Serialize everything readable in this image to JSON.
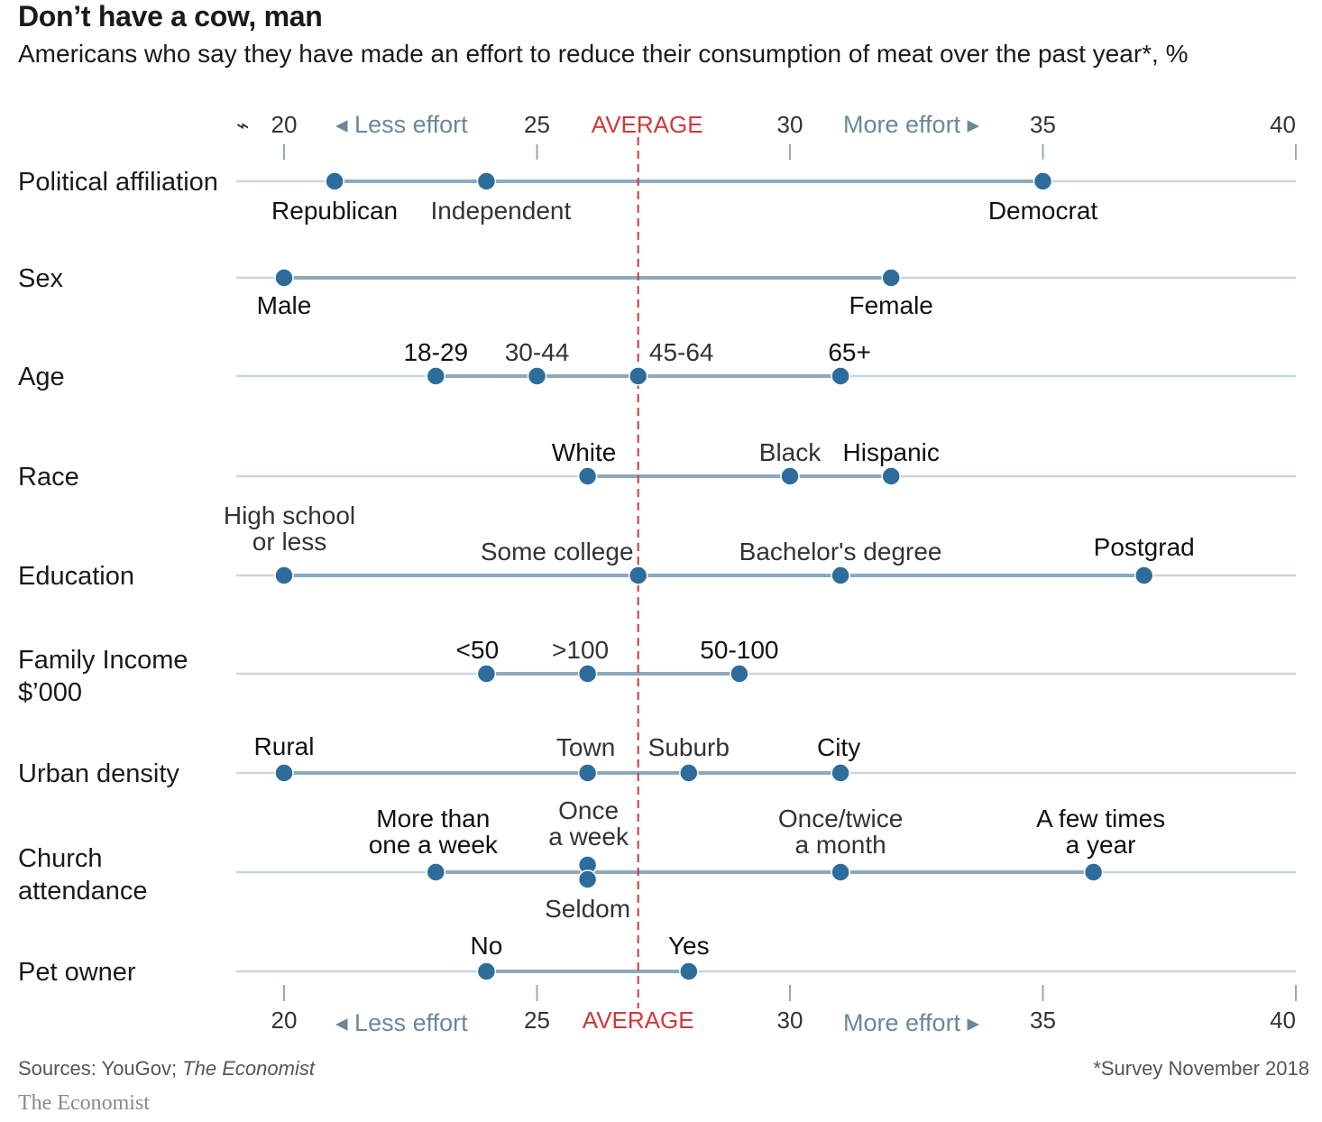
{
  "title": "Don’t have a cow, man",
  "subtitle": "Americans who say they have made an effort to reduce their consumption of meat over the past year*, %",
  "source_prefix": "Sources: YouGov; ",
  "source_italic": "The Economist",
  "footnote": "*Survey November 2018",
  "brand": "The Economist",
  "colors": {
    "dot": "#2e6c9c",
    "line": "#8ea8bc",
    "gridline": "#c9d6df",
    "average": "#d0383c",
    "axis_text": "#6b8799"
  },
  "axis_markers": {
    "less": "Less effort",
    "more": "More effort",
    "average": "AVERAGE",
    "break_symbol": "⌁"
  },
  "chart_data": {
    "type": "dot-range",
    "xlim": [
      20,
      40
    ],
    "ticks": [
      20,
      25,
      30,
      35,
      40
    ],
    "average": 27,
    "rows": [
      {
        "label": "Political affiliation",
        "points": [
          {
            "name": "Republican",
            "value": 21
          },
          {
            "name": "Independent",
            "value": 24
          },
          {
            "name": "Democrat",
            "value": 35
          }
        ]
      },
      {
        "label": "Sex",
        "points": [
          {
            "name": "Male",
            "value": 20
          },
          {
            "name": "Female",
            "value": 32
          }
        ]
      },
      {
        "label": "Age",
        "points": [
          {
            "name": "18-29",
            "value": 23
          },
          {
            "name": "30-44",
            "value": 25
          },
          {
            "name": "45-64",
            "value": 27
          },
          {
            "name": "65+",
            "value": 31
          }
        ]
      },
      {
        "label": "Race",
        "points": [
          {
            "name": "White",
            "value": 26
          },
          {
            "name": "Black",
            "value": 30
          },
          {
            "name": "Hispanic",
            "value": 32
          }
        ]
      },
      {
        "label": "Education",
        "points": [
          {
            "name": "High school or less",
            "value": 20
          },
          {
            "name": "Some college",
            "value": 27
          },
          {
            "name": "Bachelor's degree",
            "value": 31
          },
          {
            "name": "Postgrad",
            "value": 37
          }
        ]
      },
      {
        "label": "Family Income $’000",
        "points": [
          {
            "name": "<50",
            "value": 24
          },
          {
            "name": ">100",
            "value": 26
          },
          {
            "name": "50-100",
            "value": 29
          }
        ]
      },
      {
        "label": "Urban density",
        "points": [
          {
            "name": "Rural",
            "value": 20
          },
          {
            "name": "Town",
            "value": 26
          },
          {
            "name": "Suburb",
            "value": 28
          },
          {
            "name": "City",
            "value": 31
          }
        ]
      },
      {
        "label": "Church attendance",
        "points": [
          {
            "name": "More than one a week",
            "value": 23
          },
          {
            "name": "Once a week",
            "value": 26
          },
          {
            "name": "Seldom",
            "value": 26
          },
          {
            "name": "Once/twice a month",
            "value": 31
          },
          {
            "name": "A few times a year",
            "value": 36
          }
        ]
      },
      {
        "label": "Pet owner",
        "points": [
          {
            "name": "No",
            "value": 24
          },
          {
            "name": "Yes",
            "value": 28
          }
        ]
      }
    ]
  }
}
